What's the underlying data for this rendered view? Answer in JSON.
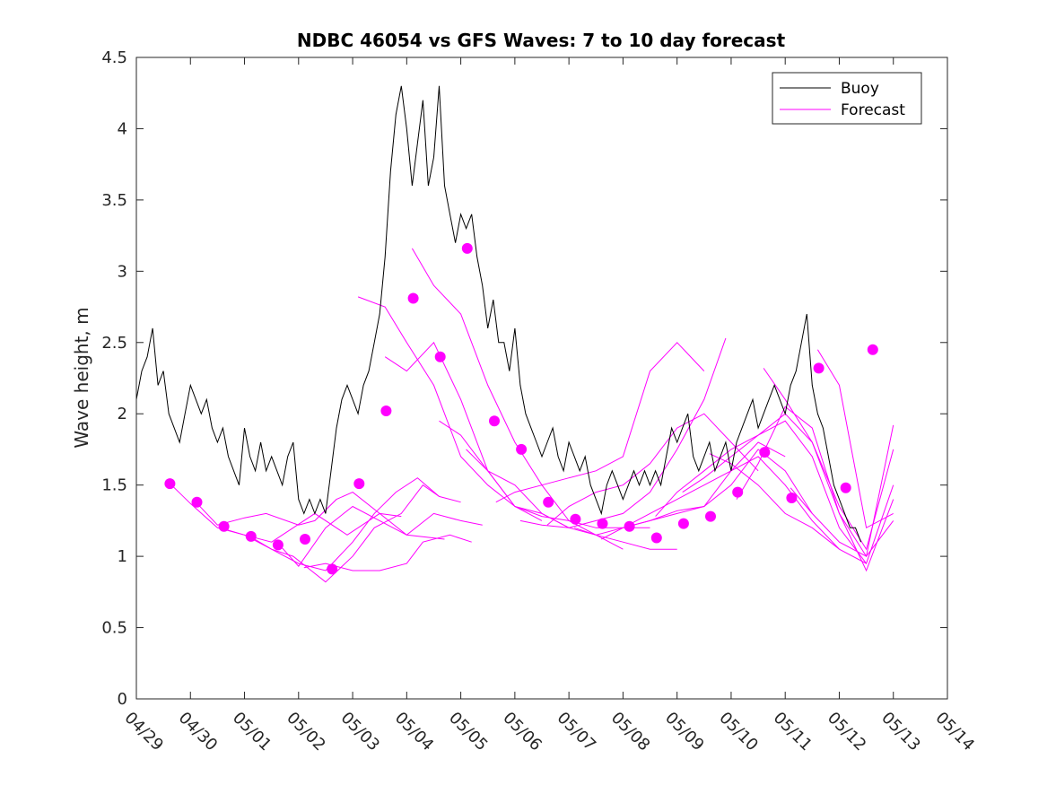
{
  "chart_data": {
    "type": "line",
    "title": "NDBC 46054 vs GFS Waves: 7 to 10 day forecast",
    "xlabel": "",
    "ylabel": "Wave height, m",
    "ylim": [
      0,
      4.5
    ],
    "xlim": [
      "04/29",
      "05/14"
    ],
    "x_tick_labels": [
      "04/29",
      "04/30",
      "05/01",
      "05/02",
      "05/03",
      "05/04",
      "05/05",
      "05/06",
      "05/07",
      "05/08",
      "05/09",
      "05/10",
      "05/11",
      "05/12",
      "05/13",
      "05/14"
    ],
    "y_tick_labels": [
      "0",
      "0.5",
      "1",
      "1.5",
      "2",
      "2.5",
      "3",
      "3.5",
      "4",
      "4.5"
    ],
    "y_ticks": [
      0,
      0.5,
      1,
      1.5,
      2,
      2.5,
      3,
      3.5,
      4,
      4.5
    ],
    "grid": false,
    "legend_position": "top-right",
    "legend": [
      {
        "name": "Buoy",
        "color": "#000000"
      },
      {
        "name": "Forecast",
        "color": "#ff00ff"
      }
    ],
    "colors": {
      "buoy": "#000000",
      "forecast": "#ff00ff",
      "axes": "#262626"
    },
    "series": [
      {
        "name": "Buoy",
        "x_days": [
          0.0,
          0.1,
          0.2,
          0.3,
          0.4,
          0.5,
          0.6,
          0.7,
          0.8,
          0.9,
          1.0,
          1.1,
          1.2,
          1.3,
          1.4,
          1.5,
          1.6,
          1.7,
          1.8,
          1.9,
          2.0,
          2.1,
          2.2,
          2.3,
          2.4,
          2.5,
          2.6,
          2.7,
          2.8,
          2.9,
          3.0,
          3.1,
          3.2,
          3.3,
          3.4,
          3.5,
          3.6,
          3.7,
          3.8,
          3.9,
          4.0,
          4.1,
          4.2,
          4.3,
          4.4,
          4.5,
          4.6,
          4.7,
          4.8,
          4.9,
          5.0,
          5.1,
          5.2,
          5.3,
          5.4,
          5.5,
          5.6,
          5.7,
          5.8,
          5.9,
          6.0,
          6.1,
          6.2,
          6.3,
          6.4,
          6.5,
          6.6,
          6.7,
          6.8,
          6.9,
          7.0,
          7.1,
          7.2,
          7.3,
          7.4,
          7.5,
          7.6,
          7.7,
          7.8,
          7.9,
          8.0,
          8.1,
          8.2,
          8.3,
          8.4,
          8.5,
          8.6,
          8.7,
          8.8,
          8.9,
          9.0,
          9.1,
          9.2,
          9.3,
          9.4,
          9.5,
          9.6,
          9.7,
          9.8,
          9.9,
          10.0,
          10.1,
          10.2,
          10.3,
          10.4,
          10.5,
          10.6,
          10.7,
          10.8,
          10.9,
          11.0,
          11.1,
          11.2,
          11.3,
          11.4,
          11.5,
          11.6,
          11.7,
          11.8,
          11.9,
          12.0,
          12.1,
          12.2,
          12.3,
          12.4,
          12.5,
          12.6,
          12.7,
          12.8,
          12.9,
          13.0,
          13.1,
          13.2,
          13.3,
          13.4
        ],
        "values": [
          2.1,
          2.3,
          2.4,
          2.6,
          2.2,
          2.3,
          2.0,
          1.9,
          1.8,
          2.0,
          2.2,
          2.1,
          2.0,
          2.1,
          1.9,
          1.8,
          1.9,
          1.7,
          1.6,
          1.5,
          1.9,
          1.7,
          1.6,
          1.8,
          1.6,
          1.7,
          1.6,
          1.5,
          1.7,
          1.8,
          1.4,
          1.3,
          1.4,
          1.3,
          1.4,
          1.3,
          1.6,
          1.9,
          2.1,
          2.2,
          2.1,
          2.0,
          2.2,
          2.3,
          2.5,
          2.7,
          3.1,
          3.7,
          4.1,
          4.3,
          4.0,
          3.6,
          3.9,
          4.2,
          3.6,
          3.8,
          4.3,
          3.6,
          3.4,
          3.2,
          3.4,
          3.3,
          3.4,
          3.1,
          2.9,
          2.6,
          2.8,
          2.5,
          2.5,
          2.3,
          2.6,
          2.2,
          2.0,
          1.9,
          1.8,
          1.7,
          1.8,
          1.9,
          1.7,
          1.6,
          1.8,
          1.7,
          1.6,
          1.7,
          1.5,
          1.4,
          1.3,
          1.5,
          1.6,
          1.5,
          1.4,
          1.5,
          1.6,
          1.5,
          1.6,
          1.5,
          1.6,
          1.5,
          1.7,
          1.9,
          1.8,
          1.9,
          2.0,
          1.7,
          1.6,
          1.7,
          1.8,
          1.6,
          1.7,
          1.8,
          1.6,
          1.8,
          1.9,
          2.0,
          2.1,
          1.9,
          2.0,
          2.1,
          2.2,
          2.1,
          2.0,
          2.2,
          2.3,
          2.5,
          2.7,
          2.2,
          2.0,
          1.9,
          1.7,
          1.5,
          1.4,
          1.3,
          1.2,
          1.2,
          1.1
        ]
      },
      {
        "name": "Forecast",
        "x_days": [
          0.65,
          1.0,
          1.5,
          2.0,
          2.5,
          2.9,
          3.3,
          3.9,
          4.5,
          5.0,
          5.7
        ],
        "values": [
          1.5,
          1.37,
          1.2,
          1.15,
          1.1,
          1.2,
          1.3,
          1.15,
          1.3,
          1.15,
          1.12
        ]
      },
      {
        "name": "Forecast",
        "x_days": [
          1.1,
          1.5,
          2.0,
          2.4,
          3.0,
          3.3,
          3.7,
          4.0,
          4.5,
          4.9
        ],
        "values": [
          1.38,
          1.22,
          1.27,
          1.3,
          1.22,
          1.25,
          1.4,
          1.45,
          1.3,
          1.28
        ]
      },
      {
        "name": "Forecast",
        "x_days": [
          1.55,
          2.0,
          2.5,
          2.9,
          3.5,
          4.0,
          4.4,
          4.9,
          5.3,
          5.6
        ],
        "values": [
          1.2,
          1.15,
          1.05,
          1.0,
          0.82,
          1.0,
          1.2,
          1.3,
          1.5,
          1.42
        ]
      },
      {
        "name": "Forecast",
        "x_days": [
          2.1,
          2.5,
          3.0,
          3.5,
          4.0,
          4.4,
          4.8,
          5.2,
          5.6,
          6.0
        ],
        "values": [
          1.14,
          1.05,
          0.95,
          0.9,
          1.1,
          1.3,
          1.45,
          1.55,
          1.42,
          1.38
        ]
      },
      {
        "name": "Forecast",
        "x_days": [
          2.6,
          3.0,
          3.5,
          4.0,
          4.5,
          5.0,
          5.5,
          6.0,
          6.4
        ],
        "values": [
          1.1,
          0.93,
          1.2,
          1.35,
          1.25,
          1.15,
          1.3,
          1.25,
          1.22
        ]
      },
      {
        "name": "Forecast",
        "x_days": [
          3.1,
          3.5,
          4.0,
          4.5,
          5.0,
          5.3,
          5.8,
          6.2
        ],
        "values": [
          0.92,
          0.95,
          0.9,
          0.9,
          0.95,
          1.1,
          1.15,
          1.1
        ]
      },
      {
        "name": "Forecast",
        "x_days": [
          4.1,
          4.6,
          5.0,
          5.5,
          6.0,
          6.5,
          7.0,
          7.5
        ],
        "values": [
          2.82,
          2.75,
          2.5,
          2.2,
          1.7,
          1.5,
          1.35,
          1.25
        ]
      },
      {
        "name": "Forecast",
        "x_days": [
          4.6,
          5.0,
          5.5,
          6.0,
          6.5,
          7.0,
          7.5,
          8.0
        ],
        "values": [
          2.4,
          2.3,
          2.5,
          2.1,
          1.6,
          1.35,
          1.3,
          1.2
        ]
      },
      {
        "name": "Forecast",
        "x_days": [
          5.1,
          5.5,
          6.0,
          6.5,
          7.0,
          7.5,
          8.0,
          8.5,
          9.0
        ],
        "values": [
          3.16,
          2.9,
          2.7,
          2.2,
          1.8,
          1.5,
          1.25,
          1.15,
          1.05
        ]
      },
      {
        "name": "Forecast",
        "x_days": [
          5.6,
          6.0,
          6.5,
          7.0,
          7.5,
          8.0,
          8.5,
          9.0,
          9.5
        ],
        "values": [
          1.95,
          1.85,
          1.6,
          1.35,
          1.28,
          1.25,
          1.2,
          1.2,
          1.2
        ]
      },
      {
        "name": "Forecast",
        "x_days": [
          6.1,
          6.5,
          7.0,
          7.5,
          8.0,
          8.5,
          9.0,
          9.5,
          10.0
        ],
        "values": [
          1.75,
          1.6,
          1.5,
          1.3,
          1.2,
          1.15,
          1.1,
          1.05,
          1.05
        ]
      },
      {
        "name": "Forecast",
        "x_days": [
          6.65,
          7.0,
          7.5,
          8.0,
          8.5,
          9.0,
          9.5,
          10.0,
          10.5
        ],
        "values": [
          1.38,
          1.45,
          1.5,
          1.55,
          1.6,
          1.7,
          2.3,
          2.5,
          2.3
        ]
      },
      {
        "name": "Forecast",
        "x_days": [
          7.1,
          7.5,
          8.0,
          8.5,
          9.0,
          9.5,
          10.0,
          10.5,
          10.9
        ],
        "values": [
          1.25,
          1.22,
          1.2,
          1.25,
          1.3,
          1.45,
          1.75,
          2.1,
          2.53
        ]
      },
      {
        "name": "Forecast",
        "x_days": [
          7.6,
          8.0,
          8.5,
          9.0,
          9.5,
          10.0,
          10.5,
          11.0,
          11.5
        ],
        "values": [
          1.22,
          1.35,
          1.45,
          1.5,
          1.65,
          1.9,
          2.0,
          1.8,
          1.6
        ]
      },
      {
        "name": "Forecast",
        "x_days": [
          8.1,
          8.5,
          9.0,
          9.5,
          10.0,
          10.5,
          11.0,
          11.5,
          12.0
        ],
        "values": [
          1.2,
          1.15,
          1.2,
          1.25,
          1.32,
          1.35,
          1.6,
          1.8,
          1.7
        ]
      },
      {
        "name": "Forecast",
        "x_days": [
          8.6,
          9.0,
          9.5,
          10.0,
          10.5,
          11.0,
          11.5,
          12.0,
          12.5
        ],
        "values": [
          1.12,
          1.2,
          1.25,
          1.3,
          1.35,
          1.5,
          1.75,
          1.6,
          1.3
        ]
      },
      {
        "name": "Forecast",
        "x_days": [
          9.1,
          9.5,
          10.0,
          10.5,
          11.0,
          11.5,
          12.0,
          12.5,
          13.0
        ],
        "values": [
          1.22,
          1.3,
          1.4,
          1.5,
          1.6,
          1.7,
          1.5,
          1.25,
          1.05
        ]
      },
      {
        "name": "Forecast",
        "x_days": [
          9.6,
          10.0,
          10.5,
          11.0,
          11.5,
          12.0,
          12.5,
          13.0,
          13.5
        ],
        "values": [
          1.28,
          1.45,
          1.6,
          1.75,
          1.85,
          1.95,
          1.7,
          1.2,
          0.95
        ]
      },
      {
        "name": "Forecast",
        "x_days": [
          10.1,
          10.5,
          11.0,
          11.5,
          12.0,
          12.5,
          13.0,
          13.5,
          14.0
        ],
        "values": [
          1.45,
          1.55,
          1.7,
          1.85,
          2.0,
          1.8,
          1.3,
          1.0,
          1.25
        ]
      },
      {
        "name": "Forecast",
        "x_days": [
          10.6,
          11.0,
          11.5,
          12.0,
          12.5,
          13.0,
          13.5,
          14.0
        ],
        "values": [
          1.72,
          1.65,
          1.5,
          1.3,
          1.2,
          1.05,
          0.95,
          1.5
        ]
      },
      {
        "name": "Forecast",
        "x_days": [
          11.1,
          11.5,
          12.0,
          12.5,
          13.0,
          13.5,
          14.0
        ],
        "values": [
          1.4,
          1.65,
          2.05,
          1.9,
          1.3,
          0.9,
          1.4
        ]
      },
      {
        "name": "Forecast",
        "x_days": [
          11.6,
          12.0,
          12.5,
          13.0,
          13.5,
          14.0
        ],
        "values": [
          2.32,
          2.1,
          1.8,
          1.35,
          1.05,
          1.75
        ]
      },
      {
        "name": "Forecast",
        "x_days": [
          12.1,
          12.5,
          13.0,
          13.5,
          14.0
        ],
        "values": [
          1.48,
          1.3,
          1.1,
          1.0,
          1.92
        ]
      },
      {
        "name": "Forecast",
        "x_days": [
          12.6,
          13.0,
          13.5,
          14.0
        ],
        "values": [
          2.45,
          2.2,
          1.2,
          1.3
        ]
      }
    ],
    "forecast_markers": {
      "x_days": [
        0.62,
        1.12,
        1.62,
        2.12,
        2.62,
        3.12,
        3.62,
        4.12,
        4.62,
        5.12,
        5.62,
        6.12,
        6.62,
        7.12,
        7.62,
        8.12,
        8.62,
        9.12,
        9.62,
        10.12,
        10.62,
        11.12,
        11.62,
        12.12,
        12.62,
        13.12,
        13.62
      ],
      "values": [
        1.51,
        1.38,
        1.21,
        1.14,
        1.08,
        1.12,
        0.91,
        1.51,
        2.02,
        2.81,
        2.4,
        3.16,
        1.95,
        1.75,
        1.38,
        1.26,
        1.23,
        1.21,
        1.13,
        1.23,
        1.28,
        1.45,
        1.73,
        1.41,
        2.32,
        1.48,
        2.45
      ]
    }
  }
}
